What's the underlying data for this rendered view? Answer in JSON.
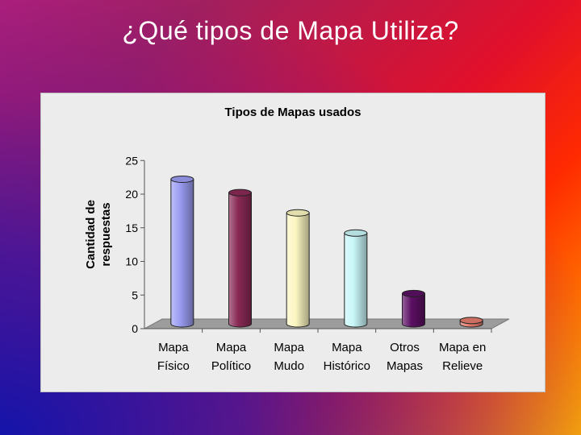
{
  "slide": {
    "title": "¿Qué tipos de Mapa Utiliza?"
  },
  "chart_data": {
    "type": "bar",
    "title": "Tipos de Mapas usados",
    "xlabel": "",
    "ylabel": [
      "Cantidad de",
      "respuestas"
    ],
    "ylim": [
      0,
      25
    ],
    "yticks": [
      0,
      5,
      10,
      15,
      20,
      25
    ],
    "grid": false,
    "three_d": true,
    "categories": [
      [
        "Mapa",
        "Físico"
      ],
      [
        "Mapa",
        "Político"
      ],
      [
        "Mapa",
        "Mudo"
      ],
      [
        "Mapa",
        "Histórico"
      ],
      [
        "Otros",
        "Mapas"
      ],
      [
        "Mapa en",
        "Relieve"
      ]
    ],
    "values": [
      21.5,
      19.5,
      16.5,
      13.5,
      4.5,
      0.5
    ],
    "colors": [
      "#9a9cf2",
      "#8a2a55",
      "#fbf6c0",
      "#c8f6f8",
      "#5c0f63",
      "#e37b6d"
    ],
    "floor_color": "#9c9c9c"
  }
}
